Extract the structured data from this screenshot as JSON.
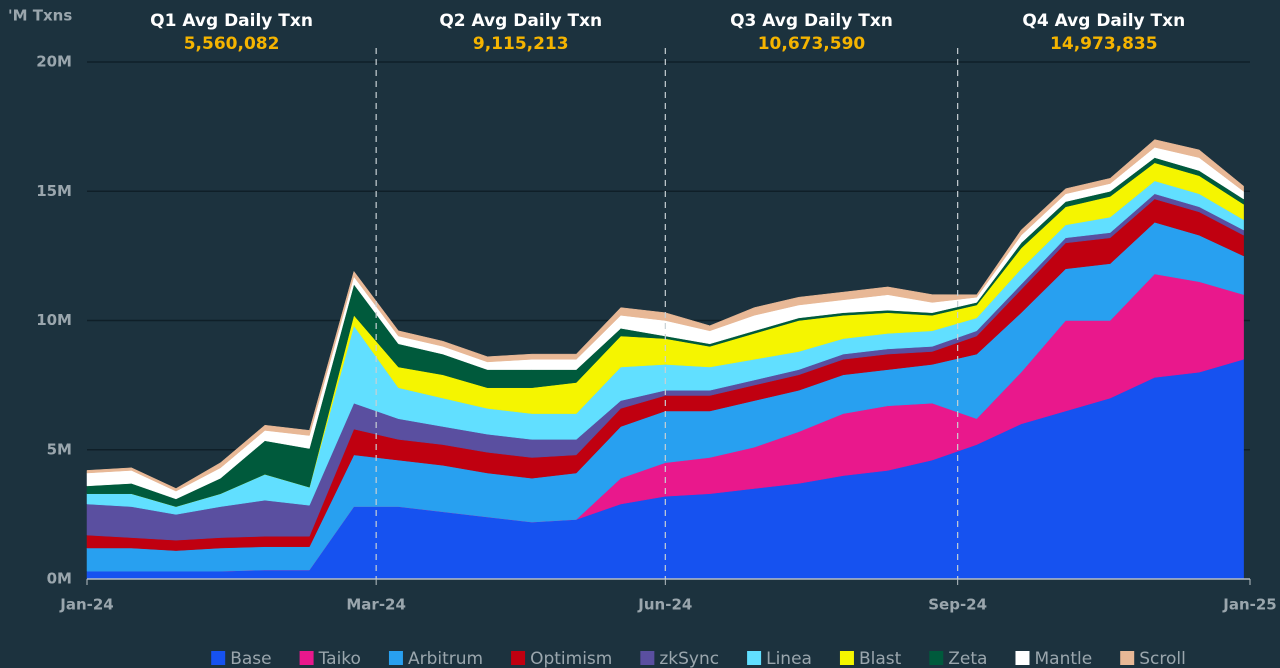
{
  "chart_data": {
    "type": "stacked_area",
    "y_axis_label": "'M Txns",
    "annotations": [
      {
        "text": "Q1 Avg Daily Txn",
        "value": "5,560,082"
      },
      {
        "text": "Q2 Avg Daily Txn",
        "value": "9,115,213"
      },
      {
        "text": "Q3 Avg Daily Txn",
        "value": "10,673,590"
      },
      {
        "text": "Q4 Avg Daily Txn",
        "value": "14,973,835"
      }
    ],
    "x": [
      0,
      14,
      28,
      42,
      56,
      70,
      84,
      98,
      112,
      126,
      140,
      154,
      168,
      182,
      196,
      210,
      224,
      238,
      252,
      266,
      280,
      294,
      308,
      322,
      336,
      350,
      364
    ],
    "xlim": [
      0,
      366
    ],
    "xticks": [
      {
        "value": 0,
        "label": "Jan-24"
      },
      {
        "value": 91,
        "label": "Mar-24"
      },
      {
        "value": 182,
        "label": "Jun-24"
      },
      {
        "value": 274,
        "label": "Sep-24"
      },
      {
        "value": 366,
        "label": "Jan-25"
      }
    ],
    "ylim": [
      0,
      20
    ],
    "yticks": [
      {
        "value": 0,
        "label": "0M"
      },
      {
        "value": 5,
        "label": "5M"
      },
      {
        "value": 10,
        "label": "10M"
      },
      {
        "value": 15,
        "label": "15M"
      },
      {
        "value": 20,
        "label": "20M"
      }
    ],
    "grid": true,
    "legend": "bottom",
    "series": [
      {
        "name": "Base",
        "color": "#1652f0",
        "values": [
          0.3,
          0.3,
          0.3,
          0.3,
          0.35,
          0.35,
          2.8,
          2.8,
          2.6,
          2.4,
          2.2,
          2.3,
          2.9,
          3.2,
          3.3,
          3.5,
          3.7,
          4.0,
          4.2,
          4.6,
          5.2,
          6.0,
          6.5,
          7.0,
          7.8,
          8.0,
          8.5
        ]
      },
      {
        "name": "Taiko",
        "color": "#e9188c",
        "values": [
          0,
          0,
          0,
          0,
          0,
          0,
          0,
          0,
          0,
          0,
          0,
          0,
          1.0,
          1.3,
          1.4,
          1.6,
          2.0,
          2.4,
          2.5,
          2.2,
          1.0,
          2.0,
          3.5,
          3.0,
          4.0,
          3.5,
          2.5
        ]
      },
      {
        "name": "Arbitrum",
        "color": "#28a0f0",
        "values": [
          0.9,
          0.9,
          0.8,
          0.9,
          0.9,
          0.9,
          2.0,
          1.8,
          1.8,
          1.7,
          1.7,
          1.8,
          2.0,
          2.0,
          1.8,
          1.8,
          1.6,
          1.5,
          1.4,
          1.5,
          2.5,
          2.3,
          2.0,
          2.2,
          2.0,
          1.8,
          1.5
        ]
      },
      {
        "name": "Optimism",
        "color": "#c00010",
        "values": [
          0.5,
          0.4,
          0.4,
          0.4,
          0.4,
          0.4,
          1.0,
          0.8,
          0.8,
          0.8,
          0.8,
          0.7,
          0.7,
          0.6,
          0.6,
          0.6,
          0.6,
          0.6,
          0.6,
          0.5,
          0.7,
          0.9,
          1.0,
          1.0,
          0.9,
          0.9,
          0.8
        ]
      },
      {
        "name": "zkSync",
        "color": "#5a4fa0",
        "values": [
          1.2,
          1.2,
          1.0,
          1.2,
          1.4,
          1.2,
          1.0,
          0.8,
          0.7,
          0.7,
          0.7,
          0.6,
          0.3,
          0.2,
          0.2,
          0.2,
          0.2,
          0.2,
          0.2,
          0.2,
          0.2,
          0.2,
          0.2,
          0.2,
          0.2,
          0.2,
          0.2
        ]
      },
      {
        "name": "Linea",
        "color": "#61dfff",
        "values": [
          0.4,
          0.5,
          0.3,
          0.5,
          1.0,
          0.7,
          3.0,
          1.2,
          1.1,
          1.0,
          1.0,
          1.0,
          1.3,
          1.0,
          0.9,
          0.8,
          0.7,
          0.6,
          0.6,
          0.6,
          0.5,
          0.6,
          0.5,
          0.6,
          0.5,
          0.5,
          0.4
        ]
      },
      {
        "name": "Blast",
        "color": "#f5f500",
        "values": [
          0,
          0,
          0,
          0,
          0,
          0,
          0.4,
          0.8,
          0.9,
          0.8,
          1.0,
          1.2,
          1.2,
          1.0,
          0.8,
          1.0,
          1.2,
          0.9,
          0.8,
          0.6,
          0.5,
          0.8,
          0.7,
          0.8,
          0.7,
          0.7,
          0.6
        ]
      },
      {
        "name": "Zeta",
        "color": "#005a3c",
        "values": [
          0.3,
          0.4,
          0.3,
          0.6,
          1.3,
          1.5,
          1.2,
          0.9,
          0.8,
          0.7,
          0.7,
          0.5,
          0.3,
          0.1,
          0.1,
          0.1,
          0.1,
          0.1,
          0.1,
          0.1,
          0.1,
          0.2,
          0.2,
          0.2,
          0.2,
          0.2,
          0.2
        ]
      },
      {
        "name": "Mantle",
        "color": "#ffffff",
        "values": [
          0.5,
          0.5,
          0.3,
          0.4,
          0.4,
          0.5,
          0.3,
          0.3,
          0.3,
          0.3,
          0.4,
          0.4,
          0.5,
          0.6,
          0.5,
          0.6,
          0.5,
          0.5,
          0.6,
          0.4,
          0.2,
          0.3,
          0.3,
          0.3,
          0.4,
          0.5,
          0.3
        ]
      },
      {
        "name": "Scroll",
        "color": "#e8b896",
        "values": [
          0.1,
          0.1,
          0.1,
          0.2,
          0.2,
          0.2,
          0.2,
          0.2,
          0.2,
          0.2,
          0.2,
          0.2,
          0.3,
          0.3,
          0.2,
          0.3,
          0.3,
          0.3,
          0.3,
          0.3,
          0.1,
          0.2,
          0.2,
          0.2,
          0.3,
          0.3,
          0.2
        ]
      }
    ]
  }
}
